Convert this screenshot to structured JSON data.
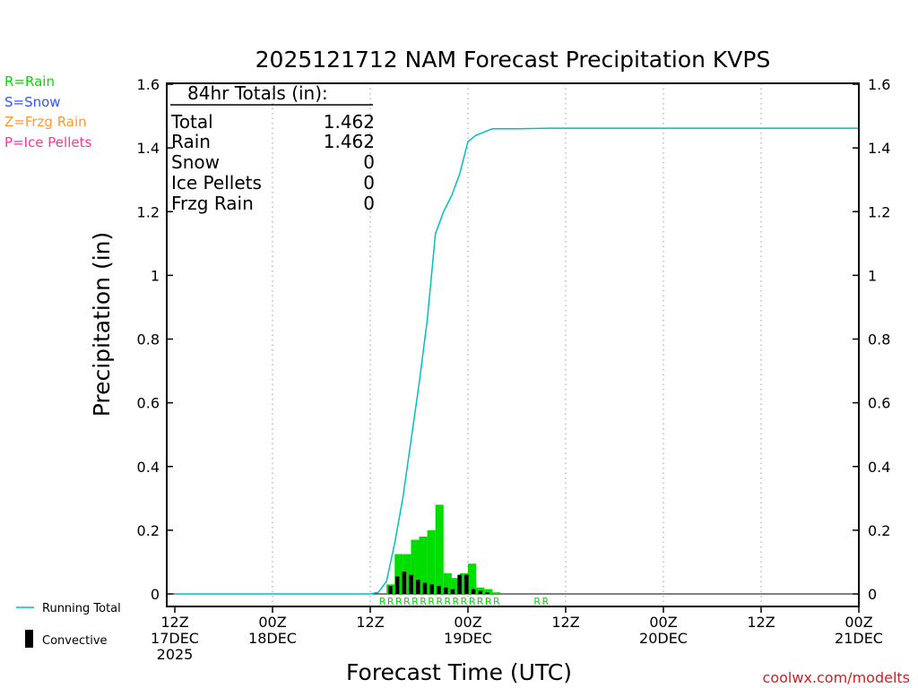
{
  "chart_data": {
    "type": "bar",
    "title": "2025121712 NAM Forecast Precipitation KVPS",
    "xlabel": "Forecast Time (UTC)",
    "ylabel": "Precipitation (in)",
    "ylim": [
      0,
      1.6
    ],
    "xlim_hours": [
      0,
      84
    ],
    "yticks": [
      "0",
      "0.2",
      "0.4",
      "0.6",
      "0.8",
      "1",
      "1.2",
      "1.4",
      "1.6"
    ],
    "xticks": [
      {
        "hour": 0,
        "line1": "12Z",
        "line2": "17DEC",
        "line3": "2025"
      },
      {
        "hour": 12,
        "line1": "00Z",
        "line2": "18DEC",
        "line3": ""
      },
      {
        "hour": 24,
        "line1": "12Z",
        "line2": "",
        "line3": ""
      },
      {
        "hour": 36,
        "line1": "00Z",
        "line2": "19DEC",
        "line3": ""
      },
      {
        "hour": 48,
        "line1": "12Z",
        "line2": "",
        "line3": ""
      },
      {
        "hour": 60,
        "line1": "00Z",
        "line2": "20DEC",
        "line3": ""
      },
      {
        "hour": 72,
        "line1": "12Z",
        "line2": "",
        "line3": ""
      },
      {
        "hour": 84,
        "line1": "00Z",
        "line2": "21DEC",
        "line3": ""
      }
    ],
    "hourly_precip": {
      "hours": [
        26,
        27,
        28,
        29,
        30,
        31,
        32,
        33,
        34,
        35,
        36,
        37,
        38,
        39,
        40
      ],
      "values": [
        0.03,
        0.125,
        0.125,
        0.17,
        0.18,
        0.2,
        0.28,
        0.065,
        0.05,
        0.065,
        0.095,
        0.02,
        0.015,
        0.005,
        0.0
      ],
      "color": "#00dd00"
    },
    "convective_precip": {
      "hours": [
        26,
        26.85,
        27.7,
        28.55,
        29.4,
        30.25,
        31.1,
        31.95,
        32.8,
        33.65,
        34.5,
        35.35,
        36.2,
        37.05,
        37.9
      ],
      "values": [
        0.025,
        0.055,
        0.07,
        0.06,
        0.045,
        0.035,
        0.03,
        0.025,
        0.02,
        0.015,
        0.06,
        0.06,
        0.015,
        0.01,
        0.005
      ],
      "color": "#000000"
    },
    "running_total": {
      "hours": [
        0,
        24,
        25,
        26,
        27,
        28,
        29,
        30,
        31,
        32,
        33,
        34,
        35,
        36,
        37,
        38,
        39,
        40,
        42,
        46,
        52,
        60,
        72,
        84
      ],
      "values": [
        0,
        0,
        0.005,
        0.04,
        0.16,
        0.3,
        0.48,
        0.66,
        0.86,
        1.13,
        1.2,
        1.25,
        1.32,
        1.42,
        1.44,
        1.45,
        1.46,
        1.46,
        1.46,
        1.462,
        1.462,
        1.462,
        1.462,
        1.462
      ],
      "color": "#00bfbf",
      "label": "Running Total"
    },
    "precip_type_markers": {
      "rain_hours": [
        25,
        26,
        27,
        28,
        29,
        30,
        31,
        32,
        33,
        34,
        35,
        36,
        37,
        38,
        39
      ],
      "rain_hours_late": [
        44,
        45
      ],
      "symbol": "R",
      "color": "#00dd00"
    }
  },
  "totals_box": {
    "header": "84hr Totals (in):",
    "rows": [
      {
        "label": "Total",
        "value": "1.462"
      },
      {
        "label": "Rain",
        "value": "1.462"
      },
      {
        "label": "Snow",
        "value": "0"
      },
      {
        "label": "Ice Pellets",
        "value": "0"
      },
      {
        "label": "Frzg Rain",
        "value": "0"
      }
    ]
  },
  "type_legend": [
    {
      "text": "R=Rain",
      "color": "#00dd00"
    },
    {
      "text": "S=Snow",
      "color": "#3355ff"
    },
    {
      "text": "Z=Frzg Rain",
      "color": "#ff9933"
    },
    {
      "text": "P=Ice Pellets",
      "color": "#ff3399"
    }
  ],
  "bottom_legend": {
    "running_total_label": "Running Total",
    "convective_label": "Convective"
  },
  "credit": "coolwx.com/modelts",
  "colors": {
    "credit": "#cc2222",
    "axis": "#000000",
    "grid": "#999999"
  }
}
